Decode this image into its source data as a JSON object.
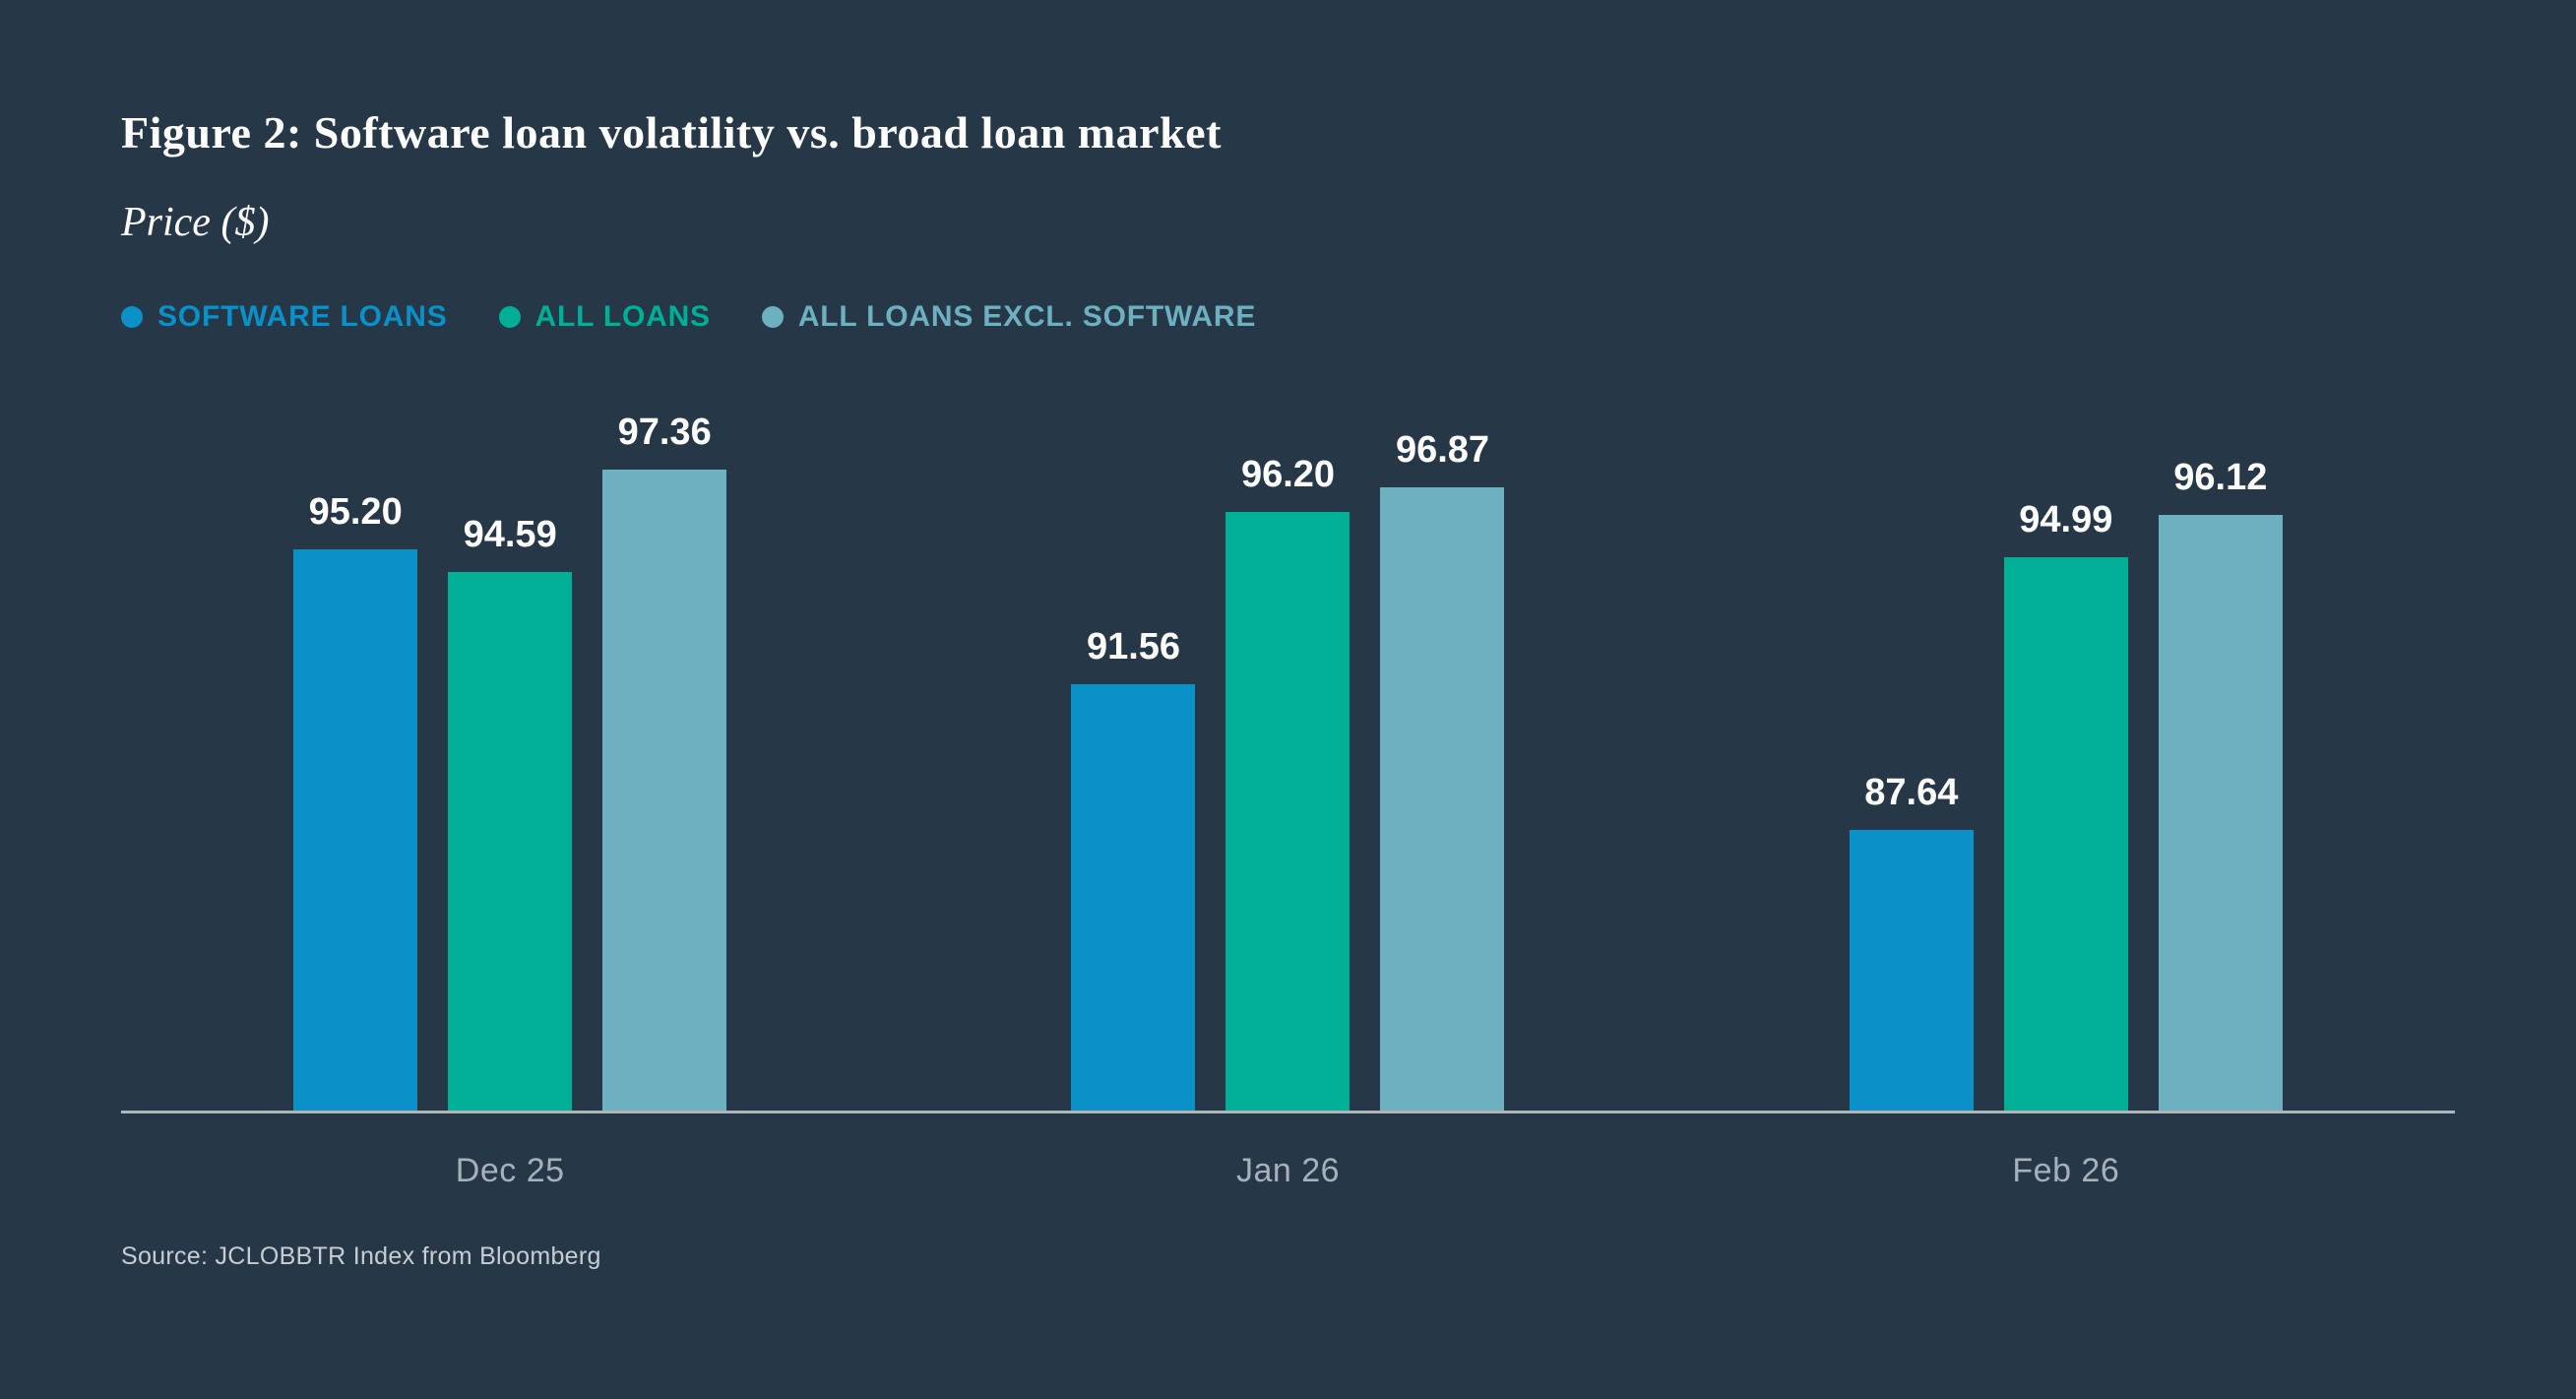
{
  "chart_data": {
    "type": "bar",
    "title": "Figure 2: Software loan volatility vs. broad loan market",
    "unit_label": "Price ($)",
    "categories": [
      "Dec 25",
      "Jan 26",
      "Feb 26"
    ],
    "series": [
      {
        "name": "SOFTWARE LOANS",
        "color": "#0a91c7",
        "values": [
          95.2,
          91.56,
          87.64
        ],
        "value_labels": [
          "95.20",
          "91.56",
          "87.64"
        ]
      },
      {
        "name": "ALL LOANS",
        "color": "#00b096",
        "values": [
          94.59,
          96.2,
          94.99
        ],
        "value_labels": [
          "94.59",
          "96.20",
          "94.99"
        ]
      },
      {
        "name": "ALL LOANS EXCL. SOFTWARE",
        "color": "#6db0c0",
        "values": [
          97.36,
          96.87,
          96.12
        ],
        "value_labels": [
          "97.36",
          "96.87",
          "96.12"
        ]
      }
    ],
    "ylim": [
      80,
      98.6
    ],
    "grid": false,
    "legend_position": "top-left",
    "background_color": "#263848",
    "axis_line_color": "#aeb6bc",
    "value_label_color": "#ffffff",
    "category_label_color": "#a7b1b9"
  },
  "source": {
    "text": "Source: JCLOBBTR Index from Bloomberg"
  }
}
